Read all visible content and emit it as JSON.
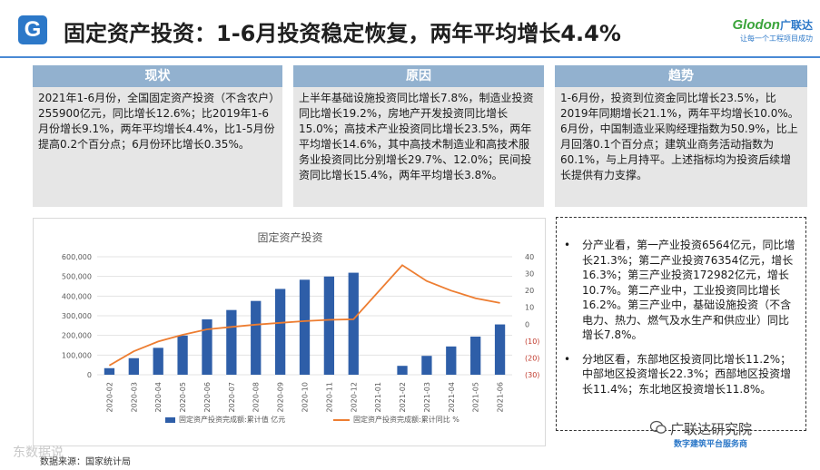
{
  "header": {
    "logo_letter": "G",
    "title": "固定资产投资：1-6月投资稳定恢复，两年平均增长4.4%",
    "brand_name": "Glodon",
    "brand_cn": "广联达",
    "brand_slogan": "让每一个工程项目成功"
  },
  "columns": [
    {
      "title": "现状",
      "text": "2021年1-6月份，全国固定资产投资（不含农户）255900亿元，同比增长12.6%；比2019年1-6月份增长9.1%，两年平均增长4.4%，比1-5月份提高0.2个百分点；6月份环比增长0.35%。"
    },
    {
      "title": "原因",
      "text": "上半年基础设施投资同比增长7.8%，制造业投资同比增长19.2%，房地产开发投资同比增长15.0%；高技术产业投资同比增长23.5%，两年平均增长14.6%，其中高技术制造业和高技术服务业投资同比分别增长29.7%、12.0%；民间投资同比增长15.4%，两年平均增长3.8%。"
    },
    {
      "title": "趋势",
      "text": "1-6月份，投资到位资金同比增长23.5%，比2019年同期增长21.1%，两年平均增长10.0%。6月份，中国制造业采购经理指数为50.9%，比上月回落0.1个百分点；建筑业商务活动指数为60.1%，与上月持平。上述指标均为投资后续增长提供有力支撑。"
    }
  ],
  "bullets": [
    "分产业看，第一产业投资6564亿元，同比增长21.3%；第二产业投资76354亿元，增长16.3%；第三产业投资172982亿元，增长10.7%。第二产业中，工业投资同比增长16.2%。第三产业中，基础设施投资（不含电力、热力、燃气及水生产和供应业）同比增长7.8%。",
    "分地区看，东部地区投资同比增长11.2%；中部地区投资增长22.3%；西部地区投资增长11.4%；东北地区投资增长11.8%。"
  ],
  "bullet_marker": "•",
  "source": "数据来源：国家统计局",
  "watermark": {
    "main": "广联达研究院",
    "sub": "数字建筑平台服务商",
    "left": "东数据说"
  },
  "colors": {
    "bar": "#2e5ea8",
    "line": "#ed7d31",
    "head": "#92b1cf",
    "body": "#e6e6e6"
  },
  "chart_data": {
    "type": "bar",
    "title": "固定资产投资",
    "categories": [
      "2020-02",
      "2020-03",
      "2020-04",
      "2020-05",
      "2020-06",
      "2020-07",
      "2020-08",
      "2020-09",
      "2020-10",
      "2020-11",
      "2020-12",
      "2021-01",
      "2021-02",
      "2021-03",
      "2021-04",
      "2021-05",
      "2021-06"
    ],
    "series": [
      {
        "name": "固定资产投资完成额:累计值 亿元",
        "type": "bar",
        "axis": "left",
        "values": [
          33323,
          84145,
          136824,
          199194,
          281603,
          329214,
          375345,
          436530,
          483293,
          499560,
          518907,
          null,
          45236,
          95994,
          143804,
          193917,
          255900
        ]
      },
      {
        "name": "固定资产投资完成额:累计同比 %",
        "type": "line",
        "axis": "right",
        "values": [
          -24.5,
          -16.1,
          -10.3,
          -6.3,
          -3.1,
          -1.6,
          -0.3,
          0.8,
          1.8,
          2.6,
          2.9,
          null,
          35.0,
          25.6,
          19.9,
          15.4,
          12.6
        ]
      }
    ],
    "y_left": {
      "min": 0,
      "max": 600000,
      "ticks": [
        "0",
        "100,000",
        "200,000",
        "300,000",
        "400,000",
        "500,000",
        "600,000"
      ]
    },
    "y_right": {
      "min": -30,
      "max": 40,
      "ticks": [
        "(30)",
        "(20)",
        "(10)",
        "0",
        "10",
        "20",
        "30",
        "40"
      ]
    }
  }
}
